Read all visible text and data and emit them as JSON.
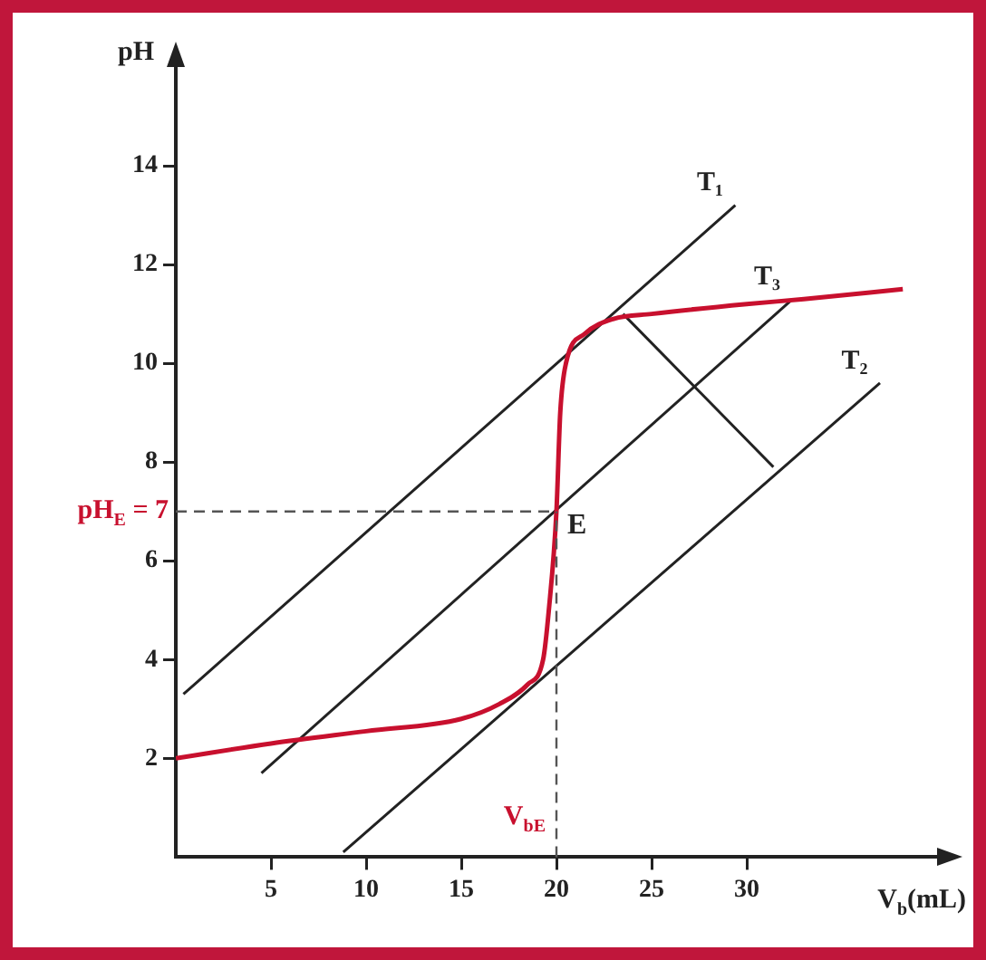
{
  "chart_data": {
    "type": "line",
    "xlabel": "V$_{b}$(mL)",
    "ylabel": "pH",
    "xlim": [
      0,
      40
    ],
    "ylim": [
      0,
      16
    ],
    "xticks": [
      5,
      10,
      15,
      20,
      25,
      30
    ],
    "yticks": [
      2,
      4,
      6,
      8,
      10,
      12,
      14
    ],
    "grid": false,
    "legend": false,
    "marker": "none",
    "line_style": "solid",
    "series": [
      {
        "color": "#c8102e",
        "x": [
          0,
          5,
          10,
          15,
          17,
          18.5,
          19.3,
          19.6,
          20,
          20.2,
          20.5,
          21.5,
          23,
          25,
          30,
          33,
          38.2
        ],
        "values": [
          2,
          2.3,
          2.55,
          2.8,
          3.1,
          3.5,
          4,
          5,
          7,
          9,
          10,
          10.6,
          10.9,
          11,
          11.2,
          11.3,
          11.5
        ]
      },
      {
        "name": "T₁",
        "color": "#222222",
        "x": [
          0.4,
          29.4
        ],
        "values": [
          3.3,
          13.2
        ]
      },
      {
        "name": "T₃",
        "color": "#222222",
        "x": [
          4.5,
          32.4
        ],
        "values": [
          1.7,
          11.3
        ]
      },
      {
        "name": "T₂",
        "color": "#222222",
        "x": [
          8.8,
          37
        ],
        "values": [
          0.1,
          9.6
        ]
      },
      {
        "color": "#222222",
        "x": [
          23.5,
          31.4
        ],
        "values": [
          11,
          7.9
        ]
      }
    ],
    "ref_lines": [
      {
        "axis": "y",
        "value": 7,
        "label": "pH$_{E}$ = 7",
        "color": "#555555",
        "line_style": "dashed"
      },
      {
        "axis": "x",
        "value": 20,
        "label": "V$_{bE}$",
        "color": "#555555",
        "line_style": "dashed"
      }
    ],
    "annotations": [
      {
        "text": "E",
        "x": 20,
        "y": 7
      }
    ]
  }
}
